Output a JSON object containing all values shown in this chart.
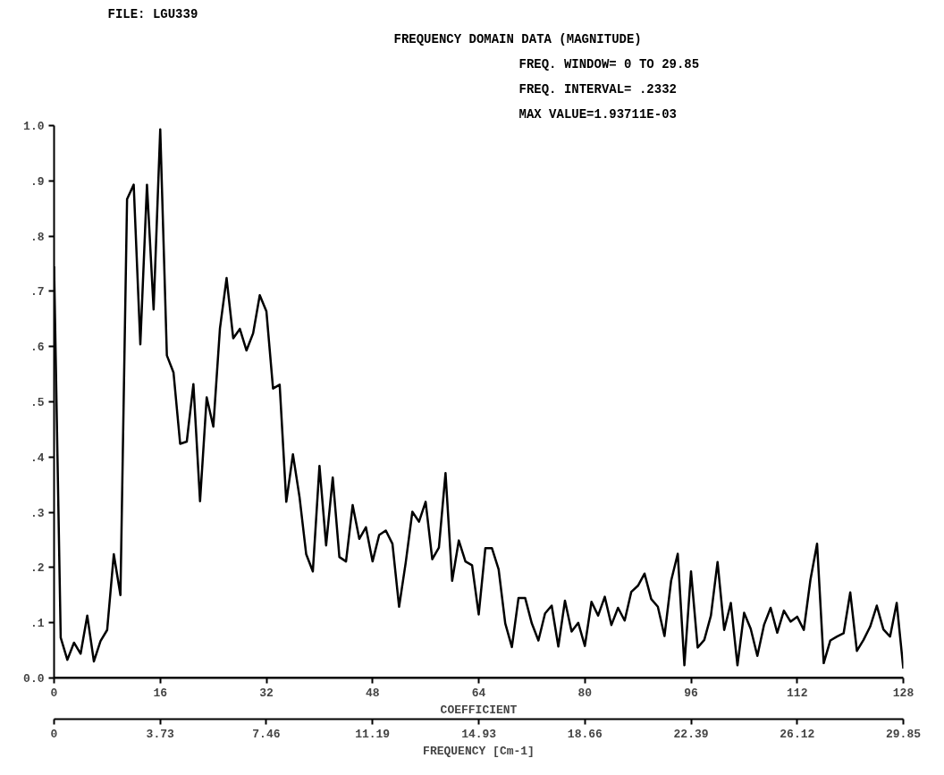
{
  "chart_data": {
    "type": "line",
    "title": "FREQUENCY DOMAIN DATA (MAGNITUDE)",
    "annotations": [
      "FILE: LGU339",
      "FREQ. WINDOW= 0 TO   29.85",
      "FREQ. INTERVAL=  .2332",
      "MAX VALUE=1.93711E-03"
    ],
    "xlabel": "COEFFICIENT",
    "x2label": "FREQUENCY [Cm-1]",
    "x": [
      0,
      1,
      2,
      3,
      4,
      5,
      6,
      7,
      8,
      9,
      10,
      11,
      12,
      13,
      14,
      15,
      16,
      17,
      18,
      19,
      20,
      21,
      22,
      23,
      24,
      25,
      26,
      27,
      28,
      29,
      30,
      31,
      32,
      33,
      34,
      35,
      36,
      37,
      38,
      39,
      40,
      41,
      42,
      43,
      44,
      45,
      46,
      47,
      48,
      49,
      50,
      51,
      52,
      53,
      54,
      55,
      56,
      57,
      58,
      59,
      60,
      61,
      62,
      63,
      64,
      65,
      66,
      67,
      68,
      69,
      70,
      71,
      72,
      73,
      74,
      75,
      76,
      77,
      78,
      79,
      80,
      81,
      82,
      83,
      84,
      85,
      86,
      87,
      88,
      89,
      90,
      91,
      92,
      93,
      94,
      95,
      96,
      97,
      98,
      99,
      100,
      101,
      102,
      103,
      104,
      105,
      106,
      107,
      108,
      109,
      110,
      111,
      112,
      113,
      114,
      115,
      116,
      117,
      118,
      119,
      120,
      121,
      122,
      123,
      124,
      125,
      126,
      127,
      128
    ],
    "series": [
      {
        "color": "#000000",
        "values": [
          0.745,
          0.073,
          0.033,
          0.064,
          0.044,
          0.113,
          0.03,
          0.067,
          0.087,
          0.224,
          0.15,
          0.867,
          0.893,
          0.604,
          0.893,
          0.667,
          0.993,
          0.584,
          0.553,
          0.424,
          0.428,
          0.532,
          0.32,
          0.508,
          0.455,
          0.633,
          0.724,
          0.615,
          0.632,
          0.593,
          0.624,
          0.693,
          0.664,
          0.524,
          0.531,
          0.319,
          0.405,
          0.327,
          0.224,
          0.193,
          0.384,
          0.24,
          0.363,
          0.219,
          0.211,
          0.313,
          0.252,
          0.273,
          0.211,
          0.259,
          0.267,
          0.243,
          0.129,
          0.209,
          0.301,
          0.283,
          0.319,
          0.215,
          0.236,
          0.371,
          0.176,
          0.249,
          0.211,
          0.204,
          0.115,
          0.235,
          0.235,
          0.197,
          0.099,
          0.056,
          0.145,
          0.145,
          0.099,
          0.068,
          0.117,
          0.131,
          0.057,
          0.14,
          0.084,
          0.1,
          0.058,
          0.138,
          0.113,
          0.147,
          0.096,
          0.127,
          0.104,
          0.156,
          0.167,
          0.189,
          0.143,
          0.129,
          0.076,
          0.176,
          0.225,
          0.023,
          0.193,
          0.055,
          0.069,
          0.113,
          0.21,
          0.087,
          0.136,
          0.023,
          0.118,
          0.089,
          0.04,
          0.096,
          0.127,
          0.082,
          0.122,
          0.102,
          0.111,
          0.087,
          0.178,
          0.243,
          0.027,
          0.068,
          0.075,
          0.081,
          0.155,
          0.049,
          0.069,
          0.093,
          0.131,
          0.088,
          0.075,
          0.136,
          0.017
        ]
      }
    ],
    "xlim": [
      0,
      128
    ],
    "xticks": [
      0,
      16,
      32,
      48,
      64,
      80,
      96,
      112,
      128
    ],
    "x2lim": [
      0,
      29.85
    ],
    "x2ticks": [
      0,
      3.73,
      7.46,
      11.19,
      14.93,
      18.66,
      22.39,
      26.12,
      29.85
    ],
    "ylim": [
      0,
      1.0
    ],
    "yticks": [
      {
        "value": 0,
        "label": "0.0"
      },
      {
        "value": 0.1,
        "label": ".1"
      },
      {
        "value": 0.2,
        "label": ".2"
      },
      {
        "value": 0.3,
        "label": ".3"
      },
      {
        "value": 0.4,
        "label": ".4"
      },
      {
        "value": 0.5,
        "label": ".5"
      },
      {
        "value": 0.6,
        "label": ".6"
      },
      {
        "value": 0.7,
        "label": ".7"
      },
      {
        "value": 0.8,
        "label": ".8"
      },
      {
        "value": 0.9,
        "label": ".9"
      },
      {
        "value": 1.0,
        "label": "1.0"
      }
    ],
    "grid": false,
    "marker": "none",
    "line_style": "solid"
  }
}
